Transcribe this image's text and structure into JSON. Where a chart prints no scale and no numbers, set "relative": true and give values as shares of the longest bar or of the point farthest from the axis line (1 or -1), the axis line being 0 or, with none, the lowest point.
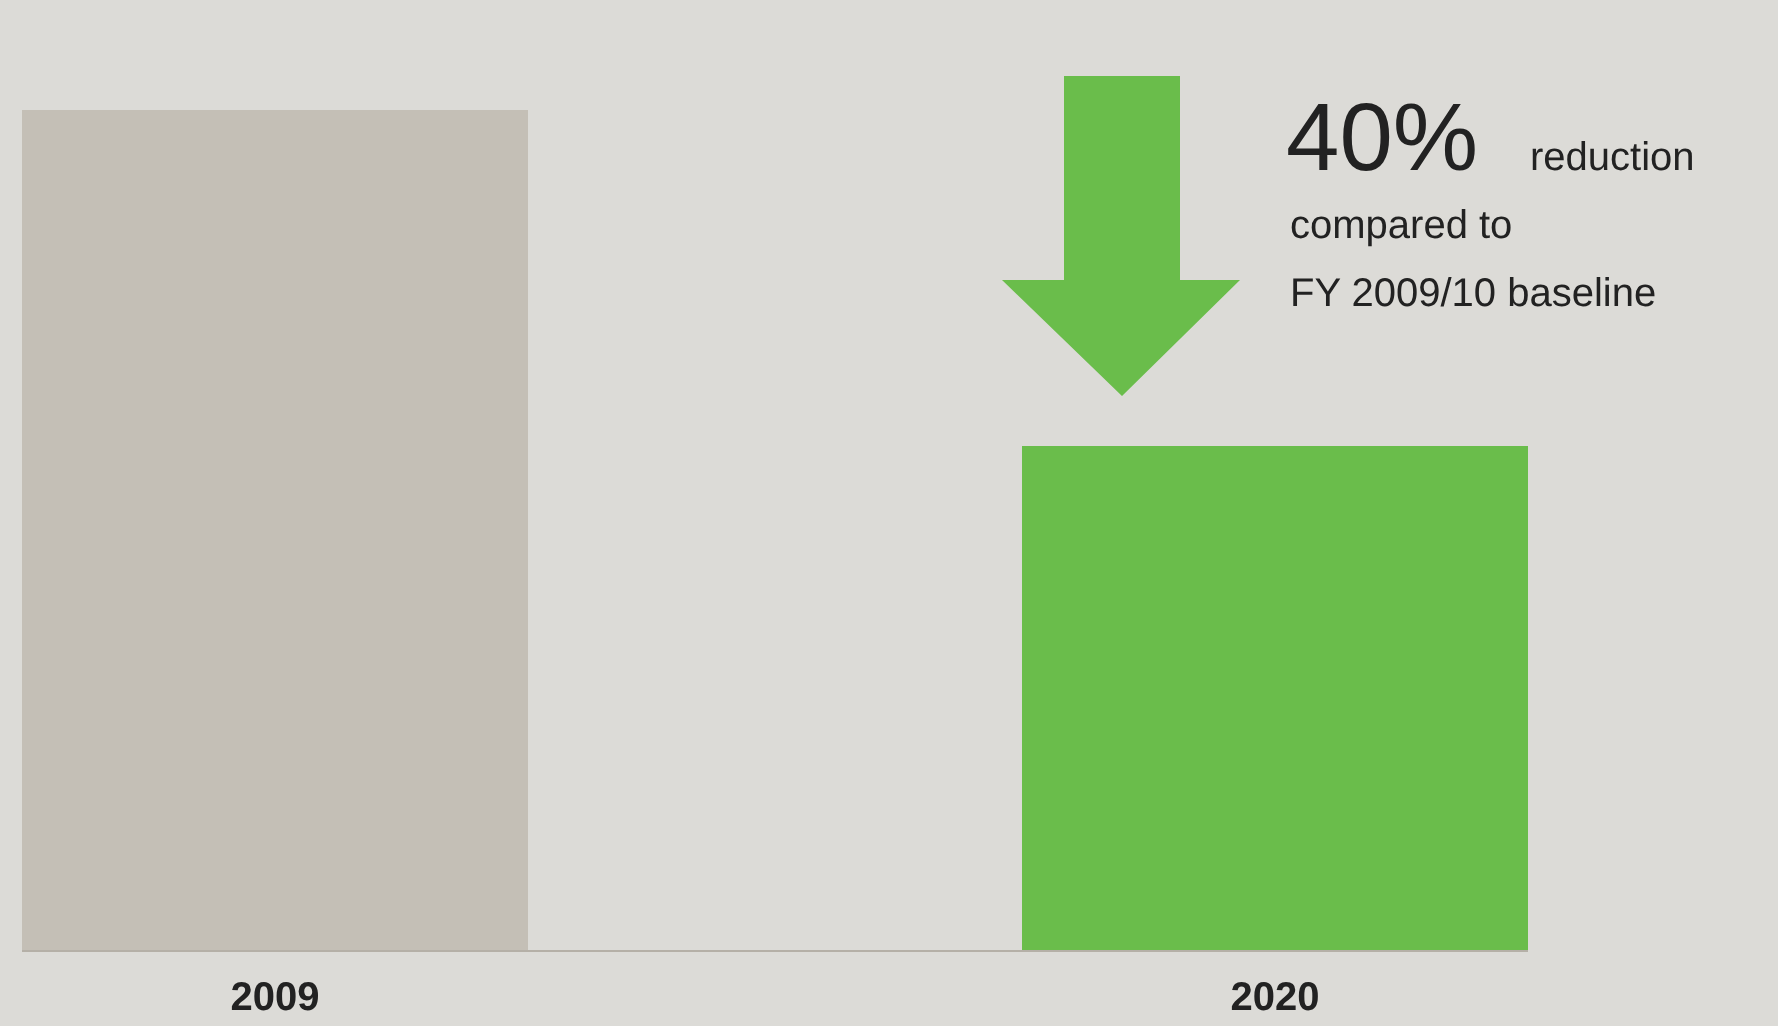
{
  "chart_data": {
    "type": "bar",
    "relative": true,
    "categories": [
      "2009",
      "2020"
    ],
    "values": [
      1,
      0.6
    ],
    "colors": [
      "#c4bfb6",
      "#6abd4b"
    ],
    "annotations": [
      "40%",
      "reduction compared to FY 2009/10 baseline"
    ]
  }
}
